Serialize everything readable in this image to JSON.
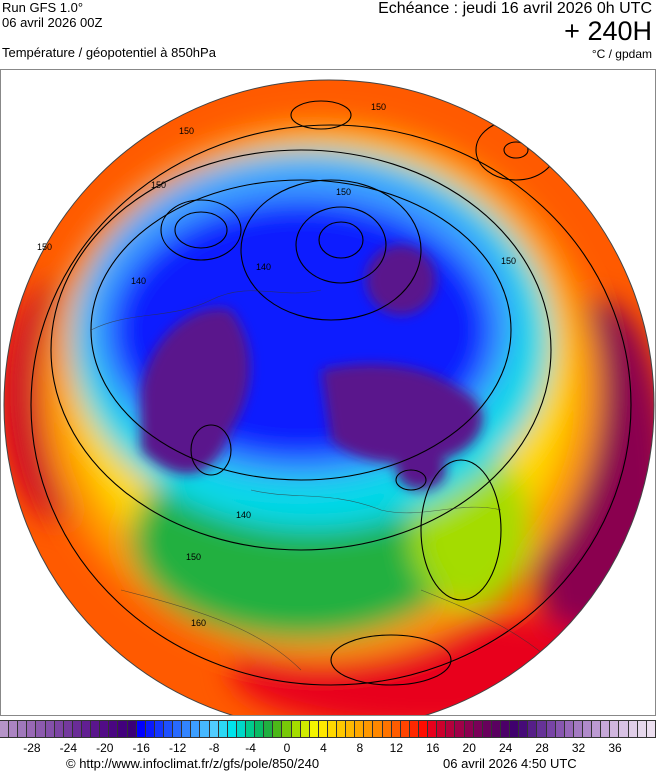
{
  "header": {
    "run": "Run GFS 1.0°",
    "run_date": "06 avril 2026 00Z",
    "echeance": "Echéance : jeudi 16 avril 2026 0h UTC",
    "lead": "+ 240H",
    "title": "Température / géopotentiel à 850hPa",
    "units": "°C / gpdam"
  },
  "map": {
    "projection": "polar stereographic, North Pole",
    "contour_labels": [
      "150",
      "150",
      "150",
      "140",
      "140",
      "150",
      "150",
      "160",
      "150",
      "140",
      "150"
    ]
  },
  "colorbar": {
    "min": -31,
    "max": 40,
    "step": 1,
    "ticks": [
      "-28",
      "-24",
      "-20",
      "-16",
      "-12",
      "-8",
      "-4",
      "0",
      "4",
      "8",
      "12",
      "16",
      "20",
      "24",
      "28",
      "32",
      "36"
    ],
    "colors": [
      "#b594c8",
      "#ab84c2",
      "#a078bb",
      "#9868b5",
      "#8c5aae",
      "#8450aa",
      "#7c44a4",
      "#74399e",
      "#6a2c97",
      "#621f92",
      "#5a158c",
      "#520c87",
      "#4a0682",
      "#42007d",
      "#3a0078",
      "#0000ff",
      "#0a1aff",
      "#1436ff",
      "#1e50ff",
      "#286aff",
      "#3284ff",
      "#3c9eff",
      "#46b8ff",
      "#50ccff",
      "#2cd8f4",
      "#00e4ec",
      "#00d8c8",
      "#00cc8c",
      "#08bc64",
      "#20b040",
      "#4cb818",
      "#78c808",
      "#a4dc00",
      "#d0ec00",
      "#f4f400",
      "#ffe800",
      "#ffd800",
      "#ffc800",
      "#ffb800",
      "#ffa800",
      "#ff9800",
      "#ff8800",
      "#ff7400",
      "#ff5c00",
      "#ff4400",
      "#ff2800",
      "#ff0c00",
      "#e8001c",
      "#cc002c",
      "#b4003c",
      "#a00048",
      "#8c0050",
      "#7a0058",
      "#68005c",
      "#5a0060",
      "#4c0068",
      "#40006e",
      "#460a78",
      "#561e88",
      "#663298",
      "#7844a6",
      "#8856b0",
      "#9868ba",
      "#a47ac2",
      "#b08aca",
      "#bc9ad2",
      "#c6a8d8",
      "#d0b6de",
      "#d8c2e4",
      "#e0cee8",
      "#e6d8ec",
      "#ecdff0"
    ]
  },
  "footer": {
    "credit": "© http://www.infoclimat.fr/z/gfs/pole/850/240",
    "generated": "06 avril 2026  4:50 UTC"
  }
}
